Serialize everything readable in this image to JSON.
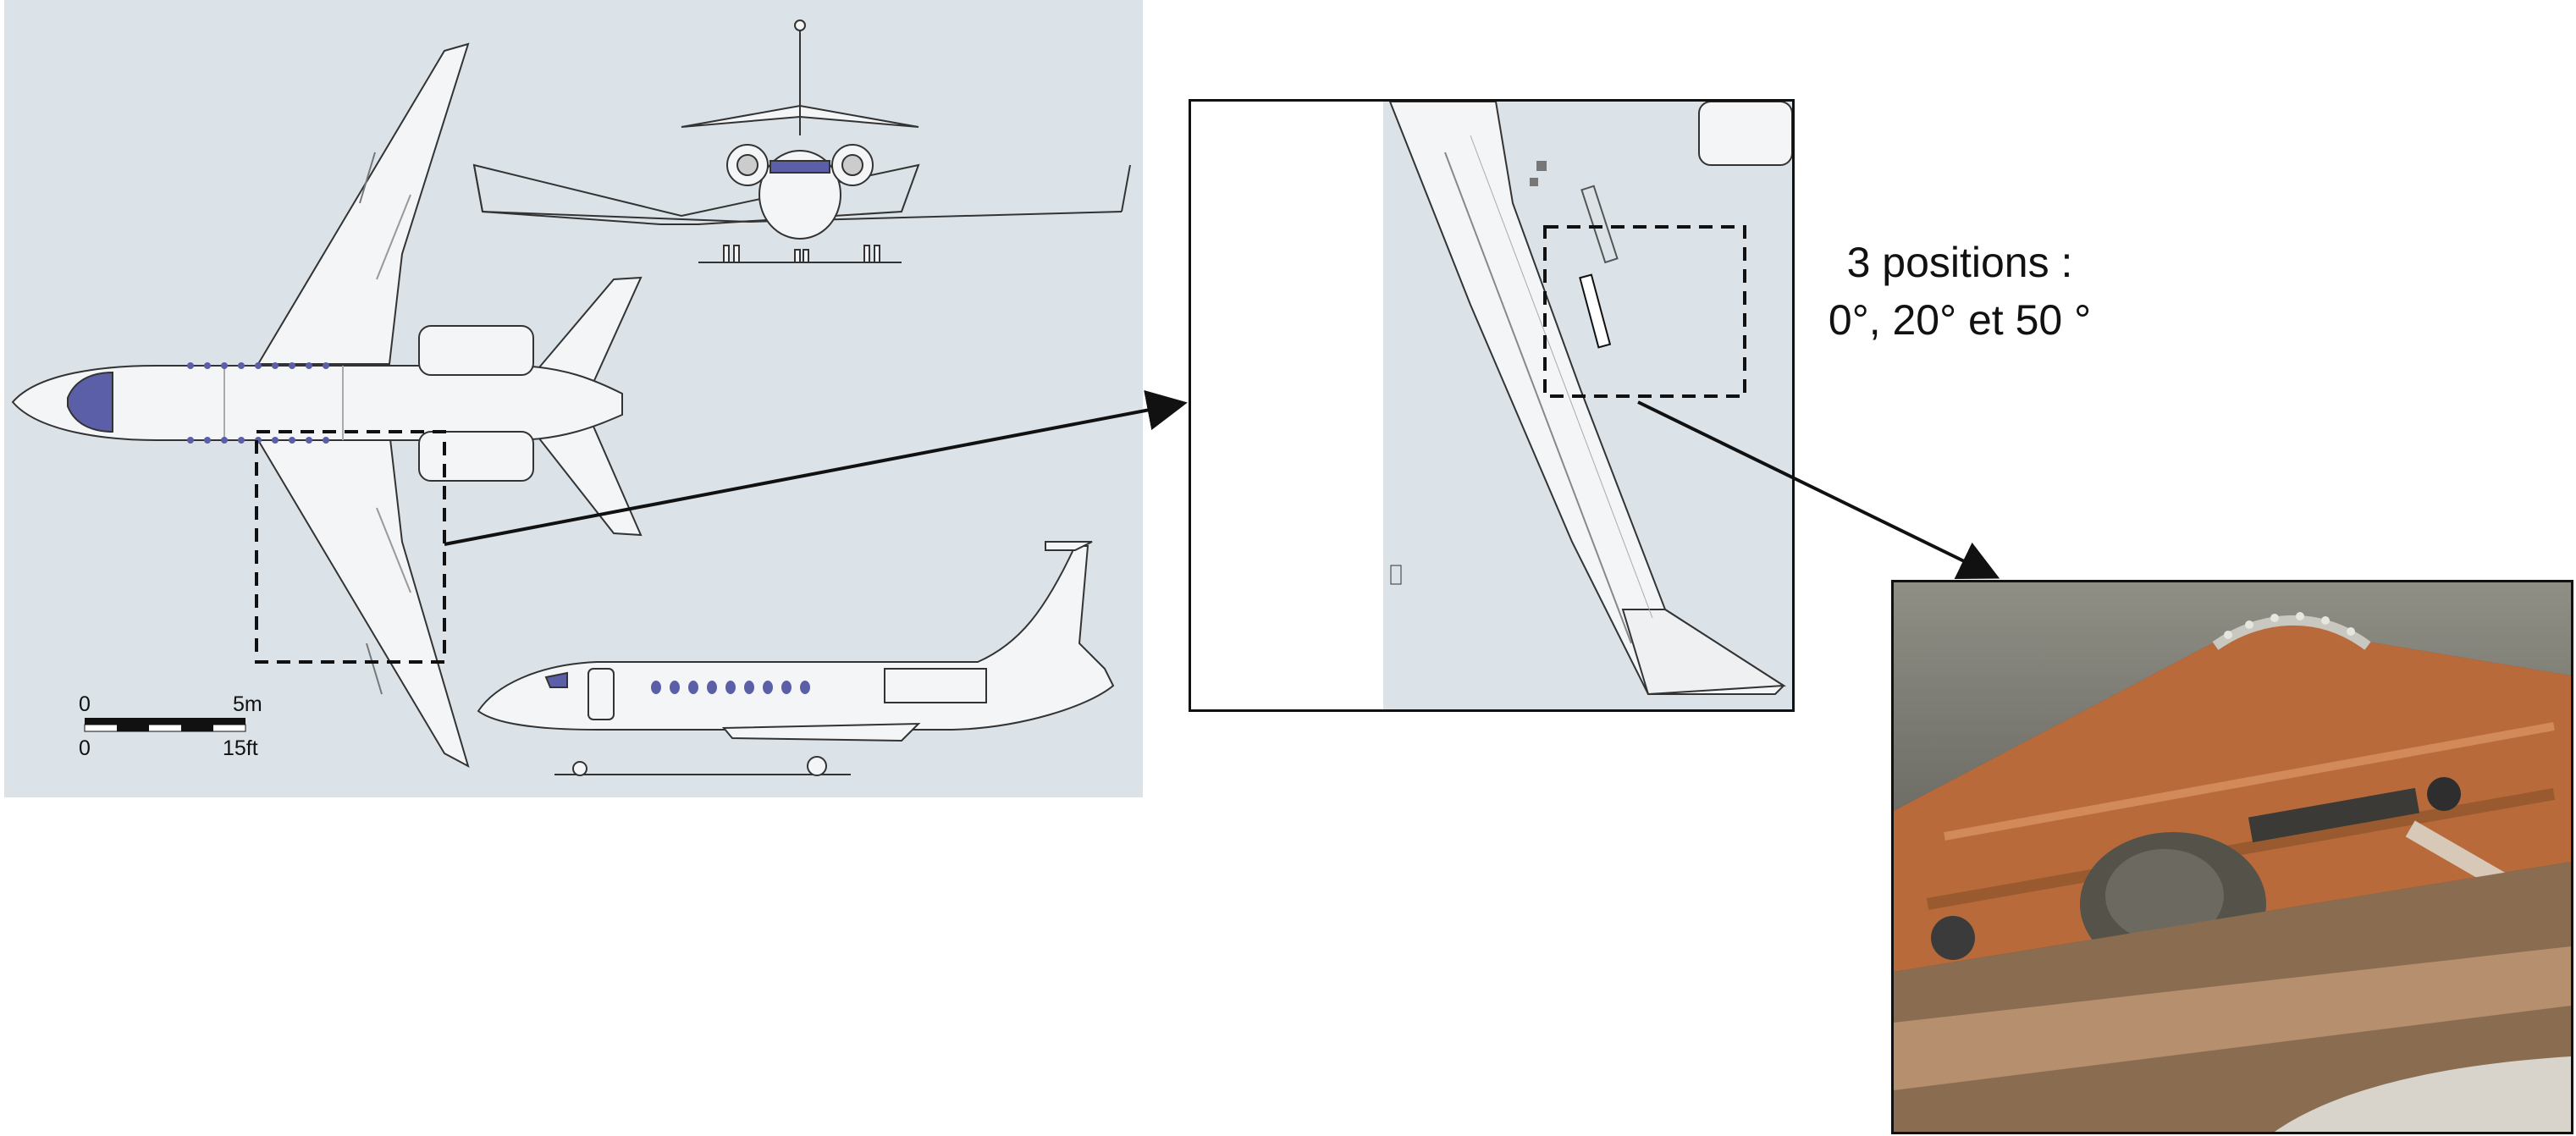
{
  "scale_bar": {
    "metric_start": "0",
    "metric_end": "5m",
    "imperial_start": "0",
    "imperial_end": "15ft"
  },
  "annotation": {
    "line1": "3 positions :",
    "line2": "0°, 20° et 50 °"
  },
  "colors": {
    "blueprint_background": "#dbe3e8",
    "aircraft_fill": "#f4f5f6",
    "aircraft_outline": "#333333",
    "window_blue": "#5a5fa8",
    "photo_copper": "#b86a3a"
  },
  "icons": {
    "aircraft_top": "aircraft-top-view-icon",
    "aircraft_front": "aircraft-front-view-icon",
    "aircraft_side": "aircraft-side-view-icon",
    "actuator_photo": "flap-actuator-photo"
  }
}
